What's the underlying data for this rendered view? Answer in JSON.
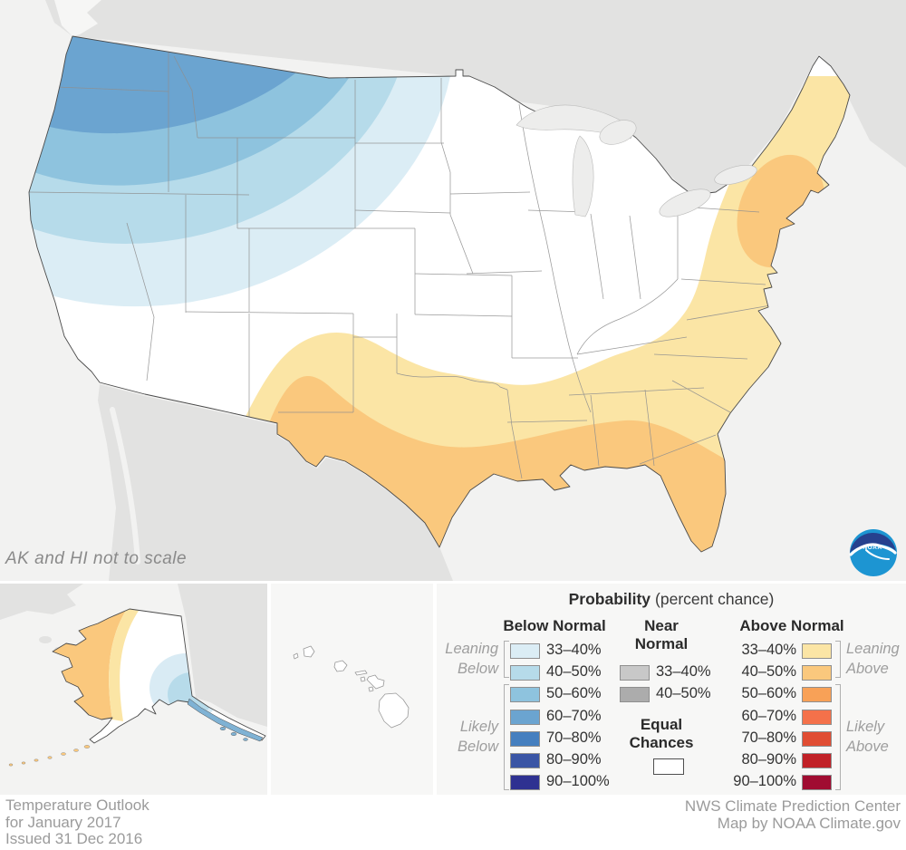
{
  "map": {
    "note": "AK and HI not to scale"
  },
  "logo": {
    "text": "NOAA"
  },
  "legend": {
    "title": "Probability",
    "title_suffix": "(percent chance)",
    "columns": {
      "below": {
        "header": "Below Normal",
        "rows": [
          {
            "label": "33–40%",
            "color": "#DBEDF5"
          },
          {
            "label": "40–50%",
            "color": "#B6DBEA"
          },
          {
            "label": "50–60%",
            "color": "#8EC3DE"
          },
          {
            "label": "60–70%",
            "color": "#6BA4D0"
          },
          {
            "label": "70–80%",
            "color": "#457FBF"
          },
          {
            "label": "80–90%",
            "color": "#3A55A5"
          },
          {
            "label": "90–100%",
            "color": "#2E3191"
          }
        ]
      },
      "near": {
        "header_line1": "Near",
        "header_line2": "Normal",
        "rows": [
          {
            "label": "33–40%",
            "color": "#C8C8C8"
          },
          {
            "label": "40–50%",
            "color": "#ACACAC"
          }
        ]
      },
      "above": {
        "header": "Above Normal",
        "rows": [
          {
            "label": "33–40%",
            "color": "#FBE5A5"
          },
          {
            "label": "40–50%",
            "color": "#FAC87D"
          },
          {
            "label": "50–60%",
            "color": "#F8A157"
          },
          {
            "label": "60–70%",
            "color": "#F4714A"
          },
          {
            "label": "70–80%",
            "color": "#E04D33"
          },
          {
            "label": "80–90%",
            "color": "#C12127"
          },
          {
            "label": "90–100%",
            "color": "#A00C31"
          }
        ]
      }
    },
    "equal_chances": {
      "label_line1": "Equal",
      "label_line2": "Chances",
      "color": "#FFFFFF"
    },
    "brackets": {
      "leaning_below": {
        "line1": "Leaning",
        "line2": "Below"
      },
      "likely_below": {
        "line1": "Likely",
        "line2": "Below"
      },
      "leaning_above": {
        "line1": "Leaning",
        "line2": "Above"
      },
      "likely_above": {
        "line1": "Likely",
        "line2": "Above"
      }
    }
  },
  "footer": {
    "left_line1": "Temperature Outlook",
    "left_line2": "for January 2017",
    "left_line3": "Issued 31 Dec 2016",
    "right_line1": "NWS Climate Prediction Center",
    "right_line2": "Map by NOAA Climate.gov"
  }
}
